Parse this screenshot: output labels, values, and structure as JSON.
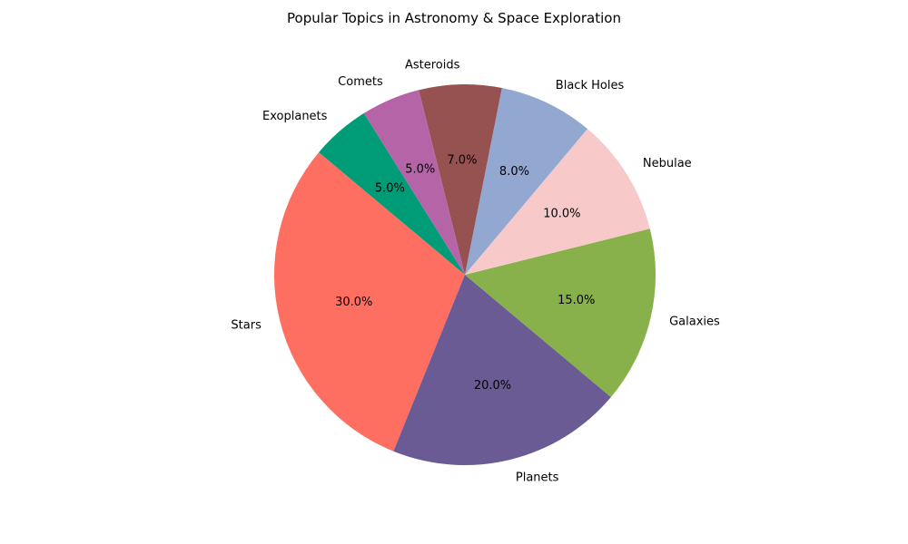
{
  "chart_data": {
    "type": "pie",
    "title": "Popular Topics in Astronomy & Space Exploration",
    "categories": [
      "Stars",
      "Planets",
      "Galaxies",
      "Nebulae",
      "Black Holes",
      "Asteroids",
      "Comets",
      "Exoplanets"
    ],
    "values": [
      30,
      20,
      15,
      10,
      8,
      7,
      5,
      5
    ],
    "percent_labels": [
      "30.0%",
      "20.0%",
      "15.0%",
      "10.0%",
      "8.0%",
      "7.0%",
      "5.0%",
      "5.0%"
    ],
    "colors": [
      "#ff6f61",
      "#6b5b95",
      "#88b04b",
      "#f7cac9",
      "#92a8d1",
      "#955251",
      "#b565a7",
      "#009b77"
    ],
    "start_angle_deg": 140,
    "direction": "counterclockwise"
  }
}
